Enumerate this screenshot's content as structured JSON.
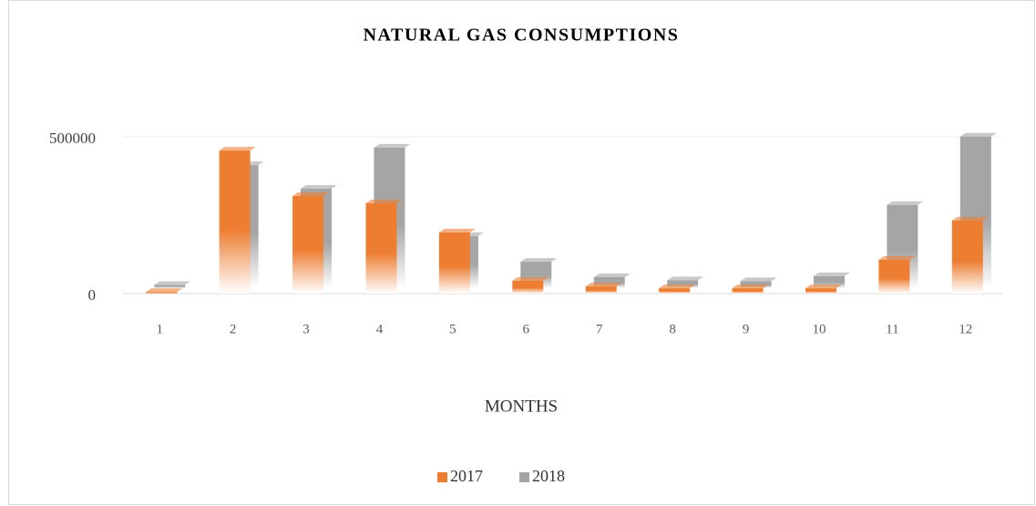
{
  "chart_data": {
    "type": "bar3d",
    "title": "NATURAL GAS CONSUMPTIONS",
    "x_label": "MONTHS",
    "categories": [
      "1",
      "2",
      "3",
      "4",
      "5",
      "6",
      "7",
      "8",
      "9",
      "10",
      "11",
      "12"
    ],
    "series": [
      {
        "name": "2017",
        "color": "#ed7d31",
        "values": [
          5000,
          456000,
          311000,
          288000,
          195000,
          41000,
          23000,
          17000,
          17000,
          17000,
          108000,
          233000
        ]
      },
      {
        "name": "2018",
        "color": "#a5a5a5",
        "values": [
          10000,
          392000,
          317000,
          448000,
          166000,
          84000,
          35000,
          25000,
          22000,
          38000,
          265000,
          483000
        ]
      }
    ],
    "ylim": [
      0,
      500000
    ],
    "yticks": [
      0,
      500000
    ],
    "grid": true,
    "legend": "bottom"
  }
}
